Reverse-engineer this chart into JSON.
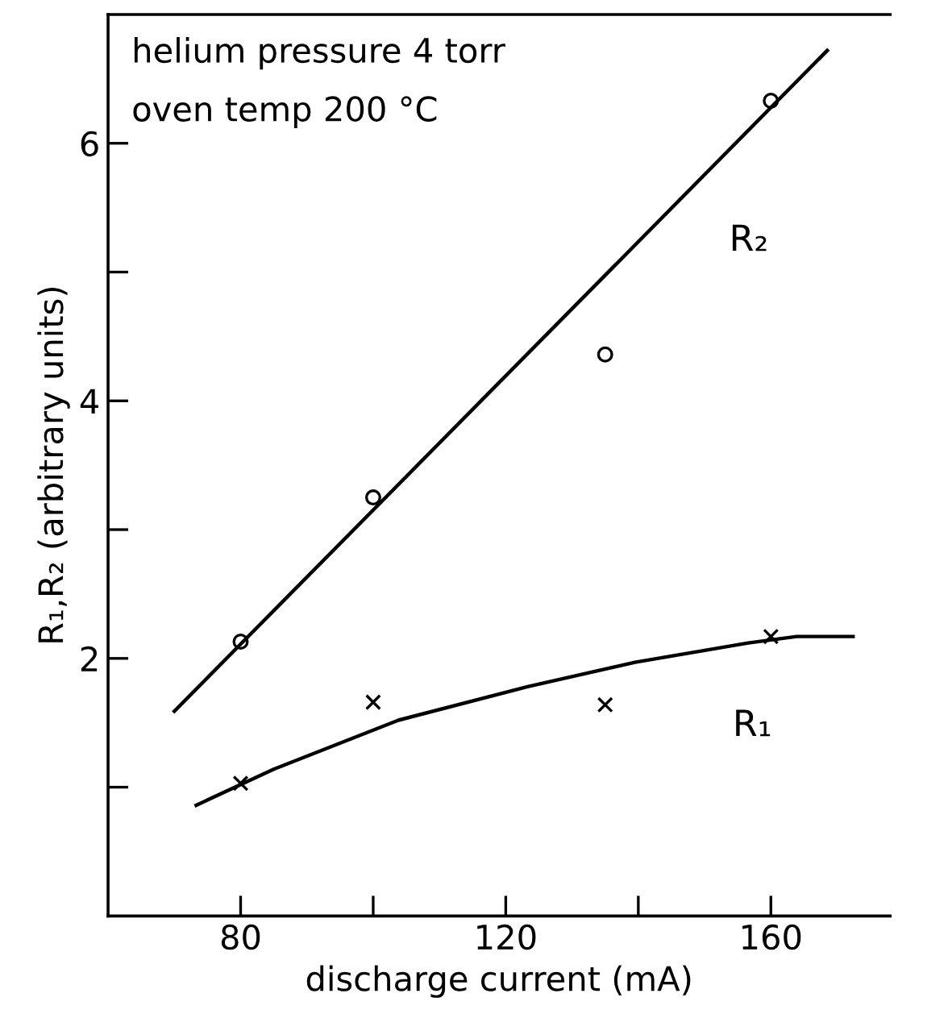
{
  "chart_data": {
    "type": "scatter",
    "xlabel": "discharge current (mA)",
    "ylabel": "R₁,R₂ (arbitrary units)",
    "xlim": [
      60,
      178
    ],
    "ylim": [
      0,
      7
    ],
    "xticks": [
      80,
      {
        "value": 100,
        "label": null
      },
      120,
      {
        "value": 140,
        "label": null
      },
      160
    ],
    "yticks": [
      {
        "value": 1,
        "label": null
      },
      2,
      {
        "value": 3,
        "label": null
      },
      4,
      {
        "value": 5,
        "label": null
      },
      6
    ],
    "grid": false,
    "legend": false,
    "series": [
      {
        "marker": "circle",
        "color": "#000000",
        "x": [
          80,
          100,
          135,
          160
        ],
        "values": [
          2.13,
          3.25,
          4.36,
          6.33
        ]
      },
      {
        "marker": "cross",
        "color": "#000000",
        "x": [
          80,
          100,
          135,
          160
        ],
        "values": [
          1.03,
          1.66,
          1.64,
          2.17
        ]
      },
      {
        "type": "line",
        "name": "R₂",
        "marker": "none",
        "line_style": "solid",
        "color": "#000000",
        "x": [
          70,
          168.5
        ],
        "values": [
          1.59,
          6.72
        ]
      },
      {
        "type": "line",
        "name": "R₁",
        "marker": "none",
        "line_style": "solid",
        "color": "#000000",
        "x": [
          73.3,
          85,
          103.8,
          123.3,
          139.5,
          156.6,
          163.9,
          172.4
        ],
        "values": [
          0.86,
          1.14,
          1.52,
          1.78,
          1.97,
          2.12,
          2.17,
          2.17
        ]
      }
    ],
    "annotations": [
      "helium pressure 4 torr",
      "oven temp 200 °C"
    ]
  }
}
